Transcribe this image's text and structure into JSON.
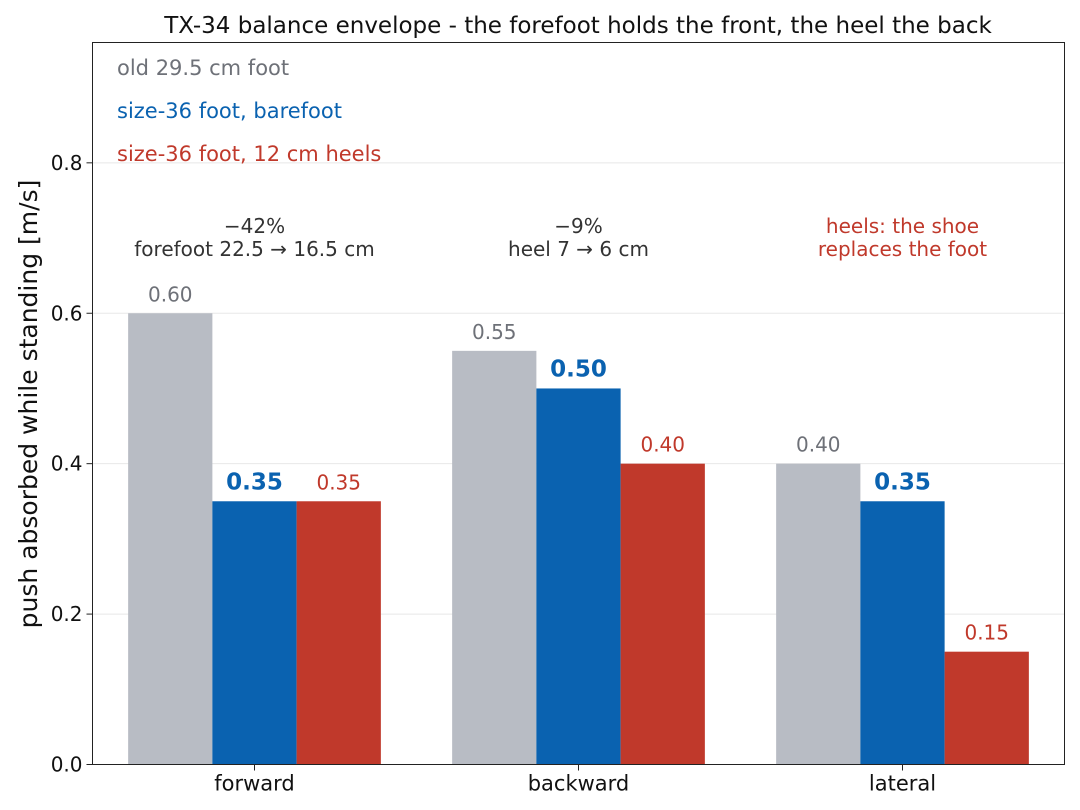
{
  "chart_data": {
    "type": "bar",
    "title": "TX-34 balance envelope - the forefoot holds the front, the heel the back",
    "xlabel": "",
    "ylabel": "push absorbed while standing [m/s]",
    "categories": [
      "forward",
      "backward",
      "lateral"
    ],
    "ylim": [
      0,
      0.96
    ],
    "yticks": [
      "0.0",
      "0.2",
      "0.4",
      "0.6",
      "0.8"
    ],
    "grid": "horizontal",
    "legend_position": "top-left",
    "series": [
      {
        "name": "old 29.5 cm foot",
        "values": [
          0.6,
          0.55,
          0.4
        ],
        "labels": [
          "0.60",
          "0.55",
          "0.40"
        ],
        "color": "#b8bcc4",
        "label_color": "#6e7178",
        "bold": false
      },
      {
        "name": "size-36 foot, barefoot",
        "values": [
          0.35,
          0.5,
          0.35
        ],
        "labels": [
          "0.35",
          "0.50",
          "0.35"
        ],
        "color": "#0a62b0",
        "label_color": "#0a62b0",
        "bold": true
      },
      {
        "name": "size-36 foot, 12 cm heels",
        "values": [
          0.35,
          0.4,
          0.15
        ],
        "labels": [
          "0.35",
          "0.40",
          "0.15"
        ],
        "color": "#c0392b",
        "label_color": "#c0392b",
        "bold": false
      }
    ],
    "annotations": [
      {
        "category": "forward",
        "lines": [
          "−42%",
          "forefoot 22.5 → 16.5 cm"
        ],
        "color": "#333333"
      },
      {
        "category": "backward",
        "lines": [
          "−9%",
          "heel 7 → 6 cm"
        ],
        "color": "#333333"
      },
      {
        "category": "lateral",
        "lines": [
          "heels: the shoe",
          "replaces the foot"
        ],
        "color": "#c0392b"
      }
    ]
  }
}
